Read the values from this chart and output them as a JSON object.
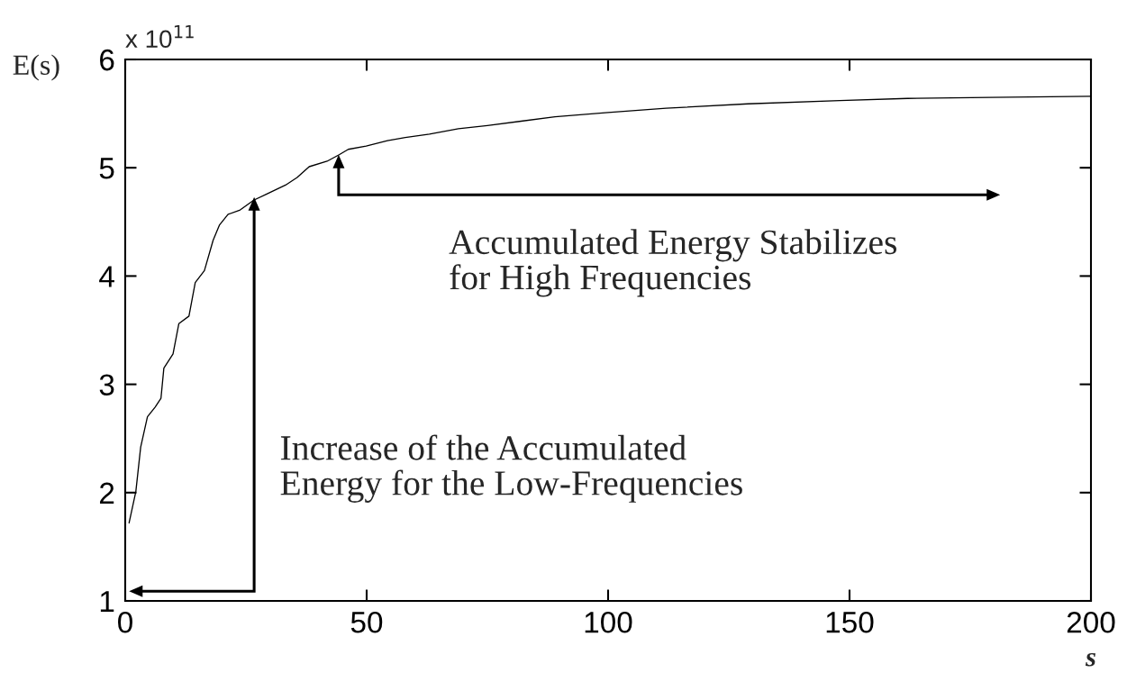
{
  "chart_data": {
    "type": "line",
    "xlabel": "s",
    "ylabel": "E(s)",
    "x": [
      0.8,
      2.2,
      3.2,
      4.6,
      6.2,
      7.4,
      8.0,
      9.9,
      11.1,
      13.2,
      14.5,
      16.4,
      18.2,
      19.5,
      21.3,
      23.8,
      26.6,
      29.4,
      33.2,
      35.6,
      38.1,
      41.8,
      44.3,
      46.2,
      49.9,
      54.3,
      58,
      63,
      69,
      75,
      82,
      89,
      100,
      112,
      129,
      148,
      162,
      179,
      200
    ],
    "series": [
      {
        "color": "#000000",
        "values": [
          1.72,
          2.01,
          2.42,
          2.7,
          2.79,
          2.87,
          3.15,
          3.28,
          3.56,
          3.63,
          3.94,
          4.05,
          4.33,
          4.47,
          4.57,
          4.61,
          4.7,
          4.76,
          4.84,
          4.91,
          5.01,
          5.06,
          5.12,
          5.17,
          5.2,
          5.25,
          5.28,
          5.31,
          5.36,
          5.39,
          5.43,
          5.47,
          5.51,
          5.55,
          5.59,
          5.62,
          5.64,
          5.65,
          5.66
        ]
      }
    ],
    "xlim": [
      0,
      200
    ],
    "ylim": [
      1,
      6
    ],
    "xticks": [
      0,
      50,
      100,
      150,
      200
    ],
    "yticks": [
      1,
      2,
      3,
      4,
      5,
      6
    ],
    "line_style": "solid",
    "annotations": [
      "x 10$^{11}$",
      "Increase of the Accumulated\nEnergy for the Low-Frequencies",
      "Accumulated Energy Stabilizes\nfor High Frequencies"
    ]
  }
}
